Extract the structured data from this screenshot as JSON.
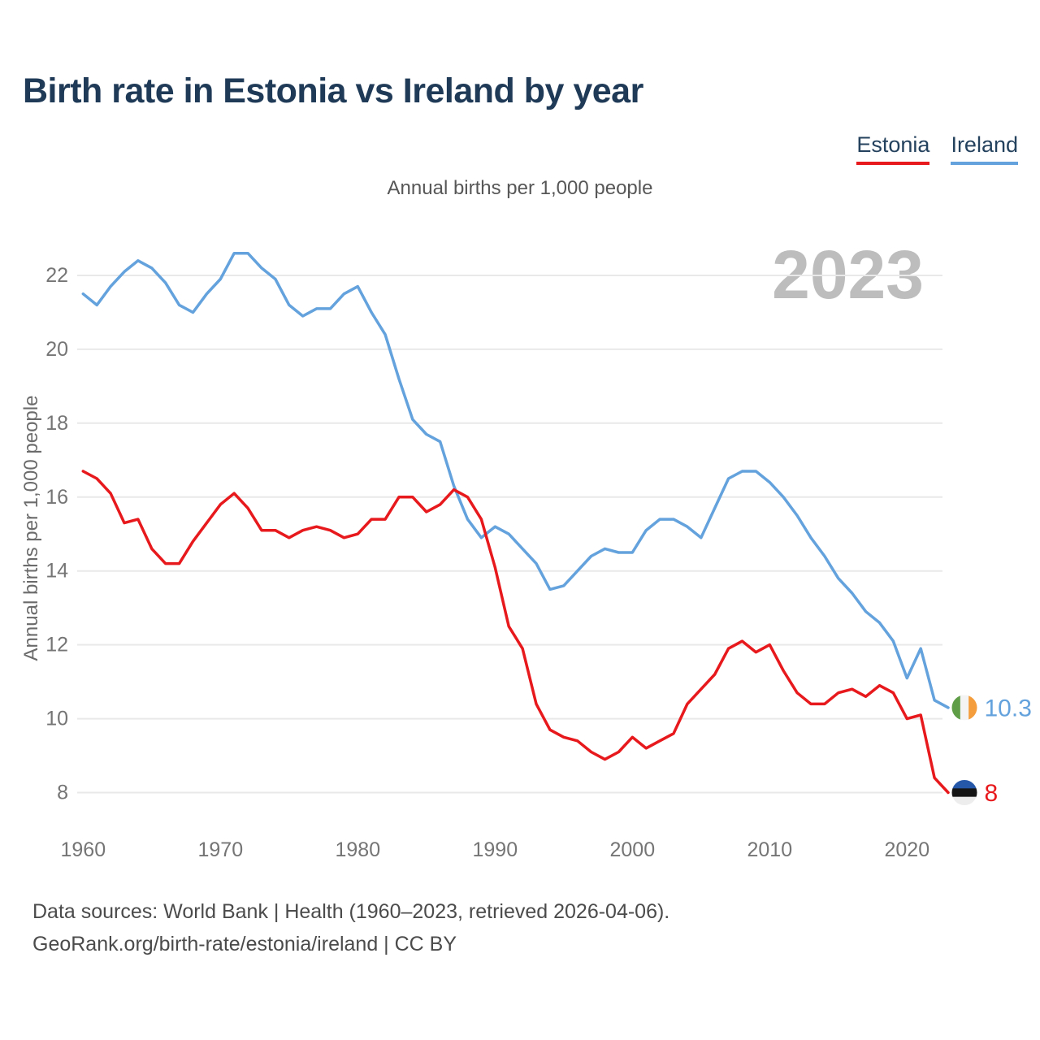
{
  "header": {
    "title": "Birth rate in Estonia vs Ireland by year",
    "subtitle": "Annual births per 1,000 people"
  },
  "legend": [
    {
      "label": "Estonia",
      "color": "#e8191c"
    },
    {
      "label": "Ireland",
      "color": "#63a2dc"
    }
  ],
  "watermark": "2023",
  "y_axis_title": "Annual births per 1,000 people",
  "chart_data": {
    "type": "line",
    "title": "Birth rate in Estonia vs Ireland by year",
    "subtitle": "Annual births per 1,000 people",
    "ylabel": "Annual births per 1,000 people",
    "xlabel": "",
    "grid": true,
    "legend_position": "top-right",
    "ylim": [
      8,
      22.8
    ],
    "y_ticks": [
      8,
      10,
      12,
      14,
      16,
      18,
      20,
      22
    ],
    "x_ticks": [
      1960,
      1970,
      1980,
      1990,
      2000,
      2010,
      2020
    ],
    "x": [
      1960,
      1961,
      1962,
      1963,
      1964,
      1965,
      1966,
      1967,
      1968,
      1969,
      1970,
      1971,
      1972,
      1973,
      1974,
      1975,
      1976,
      1977,
      1978,
      1979,
      1980,
      1981,
      1982,
      1983,
      1984,
      1985,
      1986,
      1987,
      1988,
      1989,
      1990,
      1991,
      1992,
      1993,
      1994,
      1995,
      1996,
      1997,
      1998,
      1999,
      2000,
      2001,
      2002,
      2003,
      2004,
      2005,
      2006,
      2007,
      2008,
      2009,
      2010,
      2011,
      2012,
      2013,
      2014,
      2015,
      2016,
      2017,
      2018,
      2019,
      2020,
      2021,
      2022,
      2023
    ],
    "series": [
      {
        "name": "Estonia",
        "color": "#e8191c",
        "end_label": "8",
        "flag": {
          "orientation": "horizontal",
          "colors": [
            "#2558a8",
            "#151515",
            "#ededed"
          ]
        },
        "values": [
          16.7,
          16.5,
          16.1,
          15.3,
          15.4,
          14.6,
          14.2,
          14.2,
          14.8,
          15.3,
          15.8,
          16.1,
          15.7,
          15.1,
          15.1,
          14.9,
          15.1,
          15.2,
          15.1,
          14.9,
          15.0,
          15.4,
          15.4,
          16.0,
          16.0,
          15.6,
          15.8,
          16.2,
          16.0,
          15.4,
          14.1,
          12.5,
          11.9,
          10.4,
          9.7,
          9.5,
          9.4,
          9.1,
          8.9,
          9.1,
          9.5,
          9.2,
          9.4,
          9.6,
          10.4,
          10.8,
          11.2,
          11.9,
          12.1,
          11.8,
          12.0,
          11.3,
          10.7,
          10.4,
          10.4,
          10.7,
          10.8,
          10.6,
          10.9,
          10.7,
          10.0,
          10.1,
          8.4,
          8.0
        ]
      },
      {
        "name": "Ireland",
        "color": "#63a2dc",
        "end_label": "10.3",
        "flag": {
          "orientation": "vertical",
          "colors": [
            "#5f9e47",
            "#f4f4f4",
            "#f49d3d"
          ]
        },
        "values": [
          21.5,
          21.2,
          21.7,
          22.1,
          22.4,
          22.2,
          21.8,
          21.2,
          21.0,
          21.5,
          21.9,
          22.6,
          22.6,
          22.2,
          21.9,
          21.2,
          20.9,
          21.1,
          21.1,
          21.5,
          21.7,
          21.0,
          20.4,
          19.2,
          18.1,
          17.7,
          17.5,
          16.3,
          15.4,
          14.9,
          15.2,
          15.0,
          14.6,
          14.2,
          13.5,
          13.6,
          14.0,
          14.4,
          14.6,
          14.5,
          14.5,
          15.1,
          15.4,
          15.4,
          15.2,
          14.9,
          15.7,
          16.5,
          16.7,
          16.7,
          16.4,
          16.0,
          15.5,
          14.9,
          14.4,
          13.8,
          13.4,
          12.9,
          12.6,
          12.1,
          11.1,
          11.9,
          10.5,
          10.3
        ]
      }
    ]
  },
  "footer": {
    "line1": "Data sources: World Bank | Health (1960–2023, retrieved 2026-04-06).",
    "line2": "GeoRank.org/birth-rate/estonia/ireland | CC BY"
  }
}
